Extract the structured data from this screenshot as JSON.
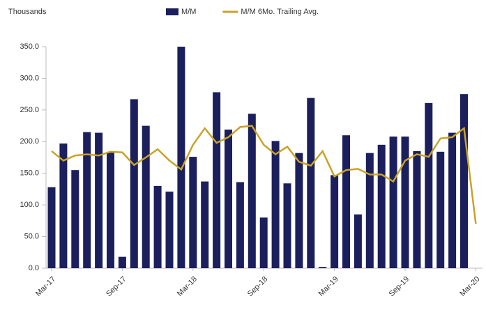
{
  "chart_data": {
    "type": "bar_line",
    "y_axis_label": "Thousands",
    "categories": [
      "Mar-17",
      null,
      null,
      null,
      null,
      null,
      "Sep-17",
      null,
      null,
      null,
      null,
      null,
      "Mar-18",
      null,
      null,
      null,
      null,
      null,
      "Sep-18",
      null,
      null,
      null,
      null,
      null,
      "Mar-19",
      null,
      null,
      null,
      null,
      null,
      "Sep-19",
      null,
      null,
      null,
      null,
      null,
      "Mar-20"
    ],
    "series": [
      {
        "name": "M/M",
        "kind": "bar",
        "color": "#1b1f5c",
        "values": [
          128,
          197,
          155,
          215,
          214,
          184,
          18,
          267,
          225,
          130,
          121,
          350,
          176,
          137,
          278,
          219,
          136,
          244,
          80,
          201,
          134,
          182,
          269,
          2,
          147,
          210,
          85,
          182,
          195,
          208,
          208,
          185,
          261,
          184,
          214,
          275,
          null
        ]
      },
      {
        "name": "M/M 6Mo. Trailing Avg.",
        "kind": "line",
        "color": "#c9a227",
        "values": [
          185,
          170,
          178,
          180,
          178,
          184,
          183,
          163,
          175,
          188,
          170,
          156,
          195,
          221,
          198,
          207,
          223,
          225,
          195,
          180,
          192,
          168,
          162,
          185,
          145,
          155,
          157,
          148,
          148,
          137,
          170,
          180,
          176,
          205,
          207,
          221,
          70
        ]
      }
    ],
    "ylim": [
      0,
      350
    ],
    "yticks": [
      {
        "value": 0,
        "label": "0.0"
      },
      {
        "value": 50,
        "label": "50.0"
      },
      {
        "value": 100,
        "label": "100.0"
      },
      {
        "value": 150,
        "label": "150.0"
      },
      {
        "value": 200,
        "label": "200.0"
      },
      {
        "value": 250,
        "label": "250.0"
      },
      {
        "value": 300,
        "label": "300.0"
      },
      {
        "value": 350,
        "label": "350.0"
      }
    ],
    "legend": "top"
  }
}
